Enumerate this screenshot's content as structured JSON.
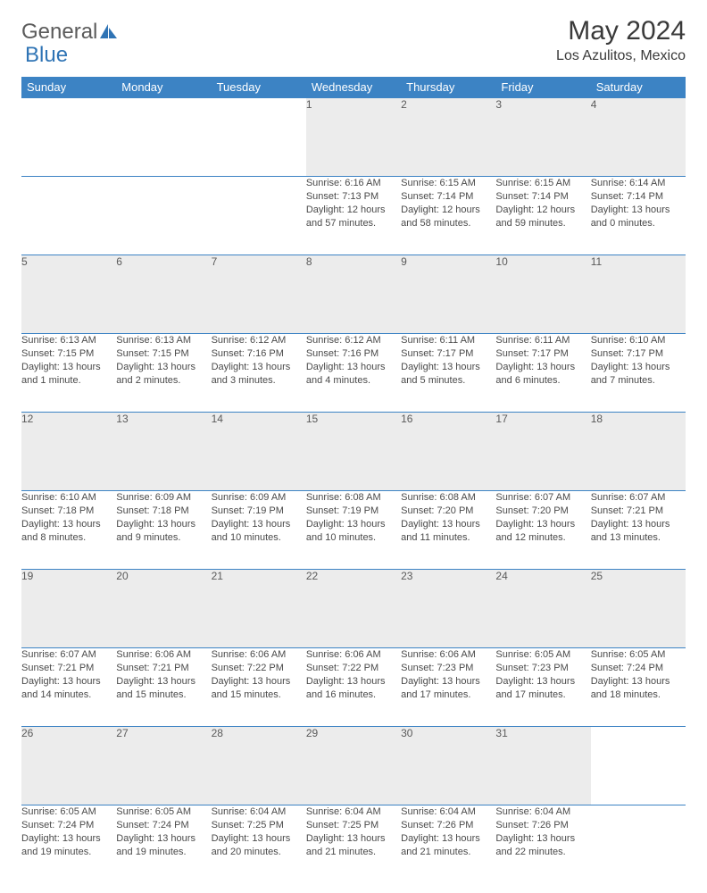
{
  "brand": {
    "part1": "General",
    "part2": "Blue"
  },
  "title": "May 2024",
  "subtitle": "Los Azulitos, Mexico",
  "colors": {
    "headerBg": "#3c83c4",
    "headerFg": "#ffffff",
    "dayBg": "#ececec",
    "logoBlue": "#2f74b5",
    "text": "#4a4a4a"
  },
  "dayHeaders": [
    "Sunday",
    "Monday",
    "Tuesday",
    "Wednesday",
    "Thursday",
    "Friday",
    "Saturday"
  ],
  "weeks": [
    [
      null,
      null,
      null,
      {
        "n": "1",
        "sr": "6:16 AM",
        "ss": "7:13 PM",
        "dl": "12 hours and 57 minutes."
      },
      {
        "n": "2",
        "sr": "6:15 AM",
        "ss": "7:14 PM",
        "dl": "12 hours and 58 minutes."
      },
      {
        "n": "3",
        "sr": "6:15 AM",
        "ss": "7:14 PM",
        "dl": "12 hours and 59 minutes."
      },
      {
        "n": "4",
        "sr": "6:14 AM",
        "ss": "7:14 PM",
        "dl": "13 hours and 0 minutes."
      }
    ],
    [
      {
        "n": "5",
        "sr": "6:13 AM",
        "ss": "7:15 PM",
        "dl": "13 hours and 1 minute."
      },
      {
        "n": "6",
        "sr": "6:13 AM",
        "ss": "7:15 PM",
        "dl": "13 hours and 2 minutes."
      },
      {
        "n": "7",
        "sr": "6:12 AM",
        "ss": "7:16 PM",
        "dl": "13 hours and 3 minutes."
      },
      {
        "n": "8",
        "sr": "6:12 AM",
        "ss": "7:16 PM",
        "dl": "13 hours and 4 minutes."
      },
      {
        "n": "9",
        "sr": "6:11 AM",
        "ss": "7:17 PM",
        "dl": "13 hours and 5 minutes."
      },
      {
        "n": "10",
        "sr": "6:11 AM",
        "ss": "7:17 PM",
        "dl": "13 hours and 6 minutes."
      },
      {
        "n": "11",
        "sr": "6:10 AM",
        "ss": "7:17 PM",
        "dl": "13 hours and 7 minutes."
      }
    ],
    [
      {
        "n": "12",
        "sr": "6:10 AM",
        "ss": "7:18 PM",
        "dl": "13 hours and 8 minutes."
      },
      {
        "n": "13",
        "sr": "6:09 AM",
        "ss": "7:18 PM",
        "dl": "13 hours and 9 minutes."
      },
      {
        "n": "14",
        "sr": "6:09 AM",
        "ss": "7:19 PM",
        "dl": "13 hours and 10 minutes."
      },
      {
        "n": "15",
        "sr": "6:08 AM",
        "ss": "7:19 PM",
        "dl": "13 hours and 10 minutes."
      },
      {
        "n": "16",
        "sr": "6:08 AM",
        "ss": "7:20 PM",
        "dl": "13 hours and 11 minutes."
      },
      {
        "n": "17",
        "sr": "6:07 AM",
        "ss": "7:20 PM",
        "dl": "13 hours and 12 minutes."
      },
      {
        "n": "18",
        "sr": "6:07 AM",
        "ss": "7:21 PM",
        "dl": "13 hours and 13 minutes."
      }
    ],
    [
      {
        "n": "19",
        "sr": "6:07 AM",
        "ss": "7:21 PM",
        "dl": "13 hours and 14 minutes."
      },
      {
        "n": "20",
        "sr": "6:06 AM",
        "ss": "7:21 PM",
        "dl": "13 hours and 15 minutes."
      },
      {
        "n": "21",
        "sr": "6:06 AM",
        "ss": "7:22 PM",
        "dl": "13 hours and 15 minutes."
      },
      {
        "n": "22",
        "sr": "6:06 AM",
        "ss": "7:22 PM",
        "dl": "13 hours and 16 minutes."
      },
      {
        "n": "23",
        "sr": "6:06 AM",
        "ss": "7:23 PM",
        "dl": "13 hours and 17 minutes."
      },
      {
        "n": "24",
        "sr": "6:05 AM",
        "ss": "7:23 PM",
        "dl": "13 hours and 17 minutes."
      },
      {
        "n": "25",
        "sr": "6:05 AM",
        "ss": "7:24 PM",
        "dl": "13 hours and 18 minutes."
      }
    ],
    [
      {
        "n": "26",
        "sr": "6:05 AM",
        "ss": "7:24 PM",
        "dl": "13 hours and 19 minutes."
      },
      {
        "n": "27",
        "sr": "6:05 AM",
        "ss": "7:24 PM",
        "dl": "13 hours and 19 minutes."
      },
      {
        "n": "28",
        "sr": "6:04 AM",
        "ss": "7:25 PM",
        "dl": "13 hours and 20 minutes."
      },
      {
        "n": "29",
        "sr": "6:04 AM",
        "ss": "7:25 PM",
        "dl": "13 hours and 21 minutes."
      },
      {
        "n": "30",
        "sr": "6:04 AM",
        "ss": "7:26 PM",
        "dl": "13 hours and 21 minutes."
      },
      {
        "n": "31",
        "sr": "6:04 AM",
        "ss": "7:26 PM",
        "dl": "13 hours and 22 minutes."
      },
      null
    ]
  ],
  "labels": {
    "sunrise": "Sunrise:",
    "sunset": "Sunset:",
    "daylight": "Daylight:"
  }
}
